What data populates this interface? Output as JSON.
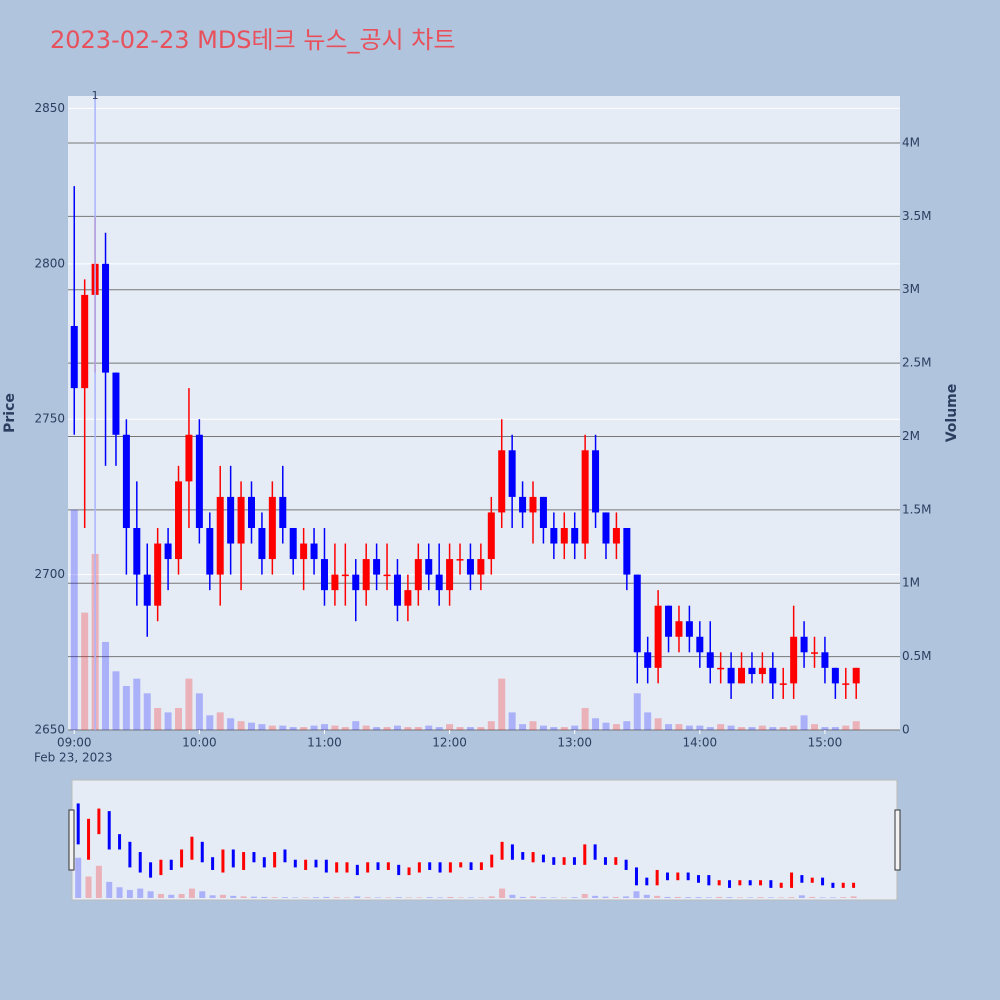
{
  "chart_data": {
    "type": "candlestick",
    "title": "2023-02-23 MDS테크 뉴스_공시 차트",
    "y_title": "Price",
    "y2_title": "Volume",
    "x_date_label": "Feb 23, 2023",
    "increasing_color": "#ff0000",
    "decreasing_color": "#0000ff",
    "x": [
      "09:00",
      "09:05",
      "09:10",
      "09:15",
      "09:20",
      "09:25",
      "09:30",
      "09:35",
      "09:40",
      "09:45",
      "09:50",
      "09:55",
      "10:00",
      "10:05",
      "10:10",
      "10:15",
      "10:20",
      "10:25",
      "10:30",
      "10:35",
      "10:40",
      "10:45",
      "10:50",
      "10:55",
      "11:00",
      "11:05",
      "11:10",
      "11:15",
      "11:20",
      "11:25",
      "11:30",
      "11:35",
      "11:40",
      "11:45",
      "11:50",
      "11:55",
      "12:00",
      "12:05",
      "12:10",
      "12:15",
      "12:20",
      "12:25",
      "12:30",
      "12:35",
      "12:40",
      "12:45",
      "12:50",
      "12:55",
      "13:00",
      "13:05",
      "13:10",
      "13:15",
      "13:20",
      "13:25",
      "13:30",
      "13:35",
      "13:40",
      "13:45",
      "13:50",
      "13:55",
      "14:00",
      "14:05",
      "14:10",
      "14:15",
      "14:20",
      "14:25",
      "14:30",
      "14:35",
      "14:40",
      "14:45",
      "14:50",
      "14:55",
      "15:00",
      "15:05",
      "15:10",
      "15:15"
    ],
    "open": [
      2780,
      2760,
      2790,
      2800,
      2765,
      2745,
      2715,
      2700,
      2690,
      2710,
      2705,
      2730,
      2745,
      2715,
      2700,
      2725,
      2710,
      2725,
      2715,
      2705,
      2725,
      2715,
      2705,
      2710,
      2705,
      2695,
      2700,
      2700,
      2695,
      2705,
      2700,
      2700,
      2690,
      2695,
      2705,
      2700,
      2695,
      2705,
      2705,
      2700,
      2705,
      2720,
      2740,
      2725,
      2720,
      2725,
      2715,
      2710,
      2715,
      2710,
      2740,
      2720,
      2710,
      2715,
      2700,
      2675,
      2670,
      2690,
      2680,
      2685,
      2680,
      2675,
      2670,
      2670,
      2665,
      2670,
      2668,
      2670,
      2665,
      2665,
      2680,
      2675,
      2675,
      2670,
      2665,
      2665
    ],
    "high": [
      2825,
      2795,
      2815,
      2810,
      2765,
      2750,
      2730,
      2710,
      2715,
      2715,
      2735,
      2760,
      2750,
      2720,
      2735,
      2735,
      2730,
      2730,
      2720,
      2730,
      2735,
      2715,
      2715,
      2715,
      2715,
      2710,
      2710,
      2705,
      2710,
      2710,
      2710,
      2705,
      2700,
      2710,
      2710,
      2710,
      2710,
      2710,
      2710,
      2710,
      2725,
      2750,
      2745,
      2730,
      2730,
      2725,
      2720,
      2720,
      2720,
      2745,
      2745,
      2720,
      2720,
      2715,
      2700,
      2680,
      2695,
      2690,
      2690,
      2690,
      2685,
      2685,
      2675,
      2675,
      2675,
      2675,
      2675,
      2675,
      2670,
      2690,
      2685,
      2680,
      2680,
      2670,
      2670,
      2670
    ],
    "low": [
      2745,
      2715,
      2765,
      2735,
      2735,
      2700,
      2690,
      2680,
      2685,
      2695,
      2700,
      2715,
      2710,
      2695,
      2690,
      2700,
      2695,
      2710,
      2700,
      2700,
      2710,
      2700,
      2695,
      2700,
      2690,
      2690,
      2690,
      2685,
      2690,
      2695,
      2695,
      2685,
      2685,
      2690,
      2695,
      2690,
      2690,
      2700,
      2695,
      2695,
      2700,
      2715,
      2715,
      2715,
      2710,
      2710,
      2705,
      2705,
      2705,
      2705,
      2715,
      2705,
      2705,
      2695,
      2665,
      2665,
      2665,
      2675,
      2675,
      2675,
      2670,
      2665,
      2665,
      2660,
      2665,
      2665,
      2665,
      2660,
      2660,
      2660,
      2670,
      2670,
      2665,
      2660,
      2660,
      2660
    ],
    "close": [
      2760,
      2790,
      2800,
      2765,
      2745,
      2715,
      2700,
      2690,
      2710,
      2705,
      2730,
      2745,
      2715,
      2700,
      2725,
      2710,
      2725,
      2715,
      2705,
      2725,
      2715,
      2705,
      2710,
      2705,
      2695,
      2700,
      2700,
      2695,
      2705,
      2700,
      2700,
      2690,
      2695,
      2705,
      2700,
      2695,
      2705,
      2705,
      2700,
      2705,
      2720,
      2740,
      2725,
      2720,
      2725,
      2715,
      2710,
      2715,
      2710,
      2740,
      2720,
      2710,
      2715,
      2700,
      2675,
      2670,
      2690,
      2680,
      2685,
      2680,
      2675,
      2670,
      2670,
      2665,
      2670,
      2668,
      2670,
      2665,
      2665,
      2680,
      2675,
      2675,
      2670,
      2665,
      2665,
      2670
    ],
    "volume": [
      1500000,
      800000,
      1200000,
      600000,
      400000,
      300000,
      350000,
      250000,
      150000,
      120000,
      150000,
      350000,
      250000,
      100000,
      120000,
      80000,
      60000,
      50000,
      40000,
      30000,
      30000,
      20000,
      20000,
      30000,
      40000,
      30000,
      20000,
      60000,
      30000,
      20000,
      20000,
      30000,
      20000,
      20000,
      30000,
      20000,
      40000,
      20000,
      20000,
      20000,
      60000,
      350000,
      120000,
      40000,
      60000,
      30000,
      20000,
      20000,
      30000,
      150000,
      80000,
      50000,
      40000,
      60000,
      250000,
      120000,
      80000,
      40000,
      40000,
      30000,
      30000,
      20000,
      40000,
      30000,
      20000,
      20000,
      30000,
      20000,
      20000,
      30000,
      100000,
      40000,
      20000,
      20000,
      30000,
      60000
    ],
    "xlim": [
      "08:57",
      "15:36"
    ],
    "xticks": [
      "09:00",
      "10:00",
      "11:00",
      "12:00",
      "13:00",
      "14:00",
      "15:00"
    ],
    "ylim": [
      2650,
      2854
    ],
    "yticks": [
      2650,
      2700,
      2750,
      2800,
      2850
    ],
    "y2lim": [
      0,
      4320000
    ],
    "y2ticks": [
      0,
      {
        "value": 500000,
        "label": "0.5M"
      },
      {
        "value": 1000000,
        "label": "1M"
      },
      {
        "value": 1500000,
        "label": "1.5M"
      },
      {
        "value": 2000000,
        "label": "2M"
      },
      {
        "value": 2500000,
        "label": "2.5M"
      },
      {
        "value": 3000000,
        "label": "3M"
      },
      {
        "value": 3500000,
        "label": "3.5M"
      },
      {
        "value": 4000000,
        "label": "4M"
      }
    ],
    "grid": true,
    "annotations": [
      {
        "x": "09:10",
        "text": "1"
      }
    ]
  }
}
